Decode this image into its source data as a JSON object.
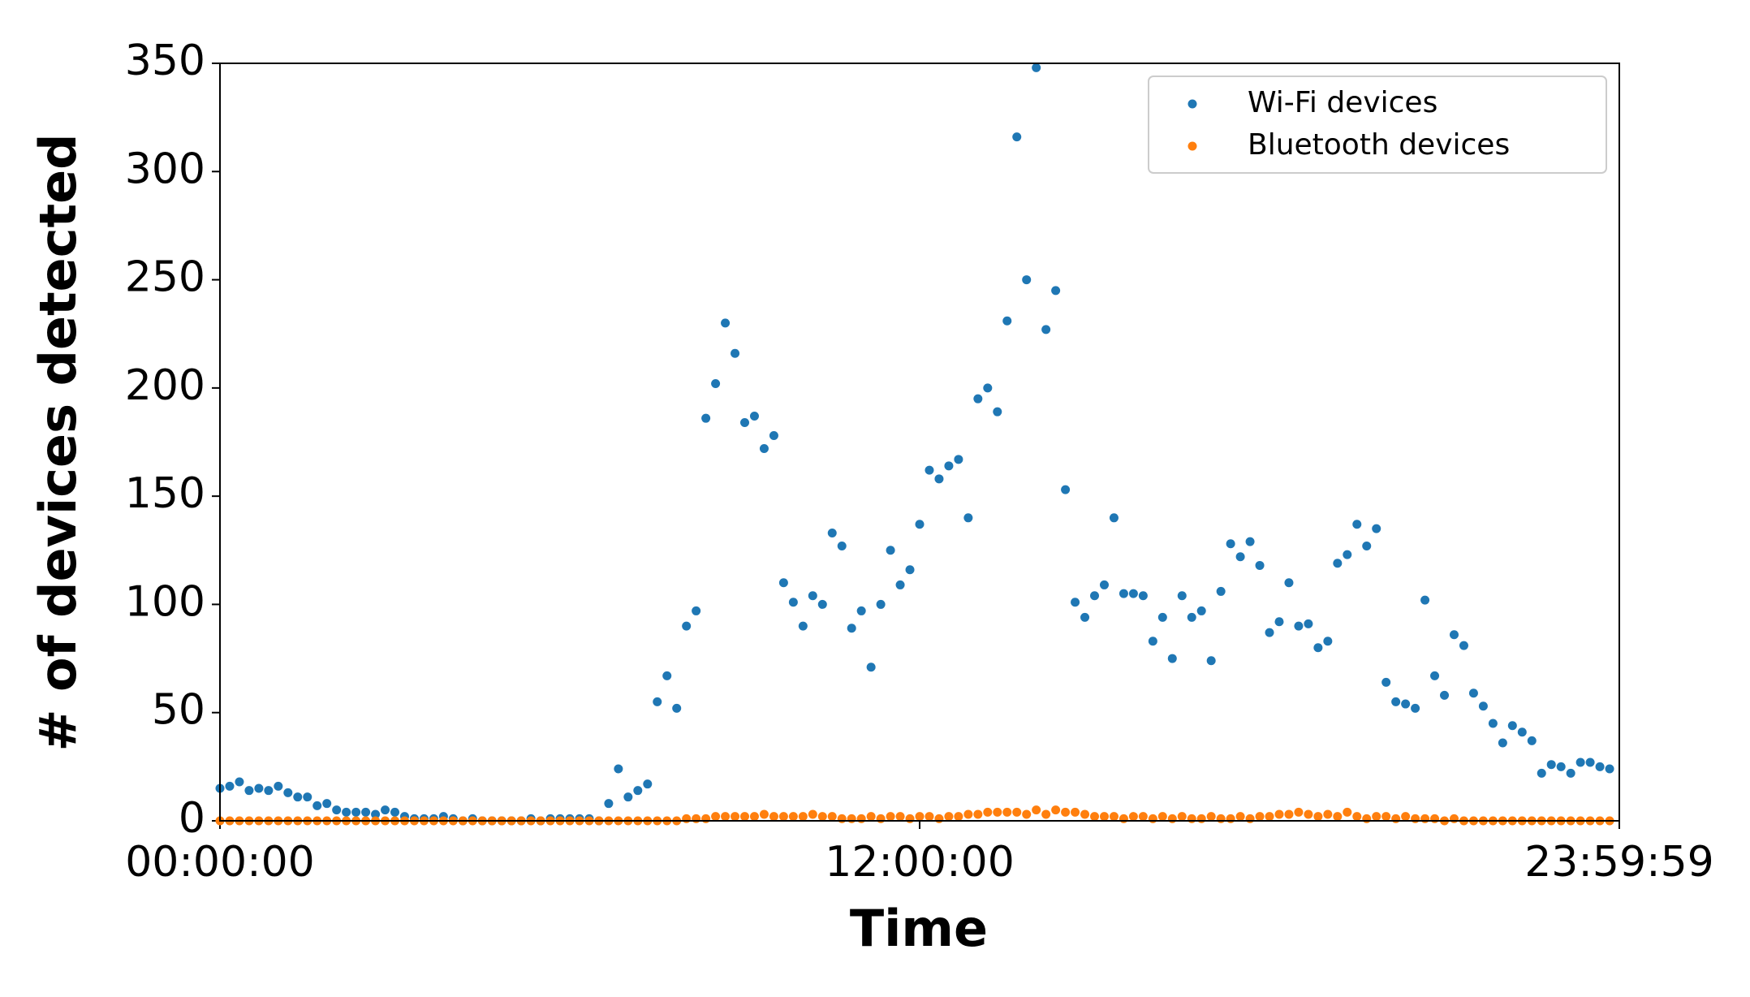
{
  "chart_data": {
    "type": "scatter",
    "x_label": "Time",
    "y_label": "# of devices detected",
    "xlim": [
      0,
      86399
    ],
    "xticks": [
      {
        "value": 0,
        "label": "00:00:00"
      },
      {
        "value": 43200,
        "label": "12:00:00"
      },
      {
        "value": 86399,
        "label": "23:59:59"
      }
    ],
    "ylim": [
      0,
      350
    ],
    "yticks": [
      0,
      50,
      100,
      150,
      200,
      250,
      300,
      350
    ],
    "grid": false,
    "legend": "upper right",
    "x": [
      0,
      600,
      1200,
      1800,
      2400,
      3000,
      3600,
      4200,
      4800,
      5400,
      6000,
      6600,
      7200,
      7800,
      8400,
      9000,
      9600,
      10200,
      10800,
      11400,
      12000,
      12600,
      13200,
      13800,
      14400,
      15000,
      15600,
      16200,
      16800,
      17400,
      18000,
      18600,
      19200,
      19800,
      20400,
      21000,
      21600,
      22200,
      22800,
      23400,
      24000,
      24600,
      25200,
      25800,
      26400,
      27000,
      27600,
      28200,
      28800,
      29400,
      30000,
      30600,
      31200,
      31800,
      32400,
      33000,
      33600,
      34200,
      34800,
      35400,
      36000,
      36600,
      37200,
      37800,
      38400,
      39000,
      39600,
      40200,
      40800,
      41400,
      42000,
      42600,
      43200,
      43800,
      44400,
      45000,
      45600,
      46200,
      46800,
      47400,
      48000,
      48600,
      49200,
      49800,
      50400,
      51000,
      51600,
      52200,
      52800,
      53400,
      54000,
      54600,
      55200,
      55800,
      56400,
      57000,
      57600,
      58200,
      58800,
      59400,
      60000,
      60600,
      61200,
      61800,
      62400,
      63000,
      63600,
      64200,
      64800,
      65400,
      66000,
      66600,
      67200,
      67800,
      68400,
      69000,
      69600,
      70200,
      70800,
      71400,
      72000,
      72600,
      73200,
      73800,
      74400,
      75000,
      75600,
      76200,
      76800,
      77400,
      78000,
      78600,
      79200,
      79800,
      80400,
      81000,
      81600,
      82200,
      82800,
      83400,
      84000,
      84600,
      85200,
      85800
    ],
    "series": [
      {
        "name": "Wi-Fi devices",
        "color": "#1f77b4",
        "values": [
          15,
          16,
          18,
          14,
          15,
          14,
          16,
          13,
          11,
          11,
          7,
          8,
          5,
          4,
          4,
          4,
          3,
          5,
          4,
          2,
          1,
          1,
          1,
          2,
          1,
          0,
          1,
          0,
          0,
          0,
          0,
          0,
          1,
          0,
          1,
          1,
          1,
          1,
          1,
          0,
          8,
          24,
          11,
          14,
          17,
          55,
          67,
          52,
          90,
          97,
          186,
          202,
          230,
          216,
          184,
          187,
          172,
          178,
          110,
          101,
          90,
          104,
          100,
          133,
          127,
          89,
          97,
          71,
          100,
          125,
          109,
          116,
          137,
          162,
          158,
          164,
          167,
          140,
          195,
          200,
          189,
          231,
          316,
          250,
          348,
          227,
          245,
          153,
          101,
          94,
          104,
          109,
          140,
          105,
          105,
          104,
          83,
          94,
          75,
          104,
          94,
          97,
          74,
          106,
          128,
          122,
          129,
          118,
          87,
          92,
          110,
          90,
          91,
          80,
          83,
          119,
          123,
          137,
          127,
          135,
          64,
          55,
          54,
          52,
          102,
          67,
          58,
          86,
          81,
          59,
          53,
          45,
          36,
          44,
          41,
          37,
          22,
          26,
          25,
          22,
          27,
          27,
          25,
          24
        ]
      },
      {
        "name": "Bluetooth devices",
        "color": "#ff7f0e",
        "values": [
          0,
          0,
          0,
          0,
          0,
          0,
          0,
          0,
          0,
          0,
          0,
          0,
          0,
          0,
          0,
          0,
          0,
          0,
          0,
          0,
          0,
          0,
          0,
          0,
          0,
          0,
          0,
          0,
          0,
          0,
          0,
          0,
          0,
          0,
          0,
          0,
          0,
          0,
          0,
          0,
          0,
          0,
          0,
          0,
          0,
          0,
          0,
          0,
          1,
          1,
          1,
          2,
          2,
          2,
          2,
          2,
          3,
          2,
          2,
          2,
          2,
          3,
          2,
          2,
          1,
          1,
          1,
          2,
          1,
          2,
          2,
          1,
          2,
          2,
          1,
          2,
          2,
          3,
          3,
          4,
          4,
          4,
          4,
          3,
          5,
          3,
          5,
          4,
          4,
          3,
          2,
          2,
          2,
          1,
          2,
          2,
          1,
          2,
          1,
          2,
          1,
          1,
          2,
          1,
          1,
          2,
          1,
          2,
          2,
          3,
          3,
          4,
          3,
          2,
          3,
          2,
          4,
          2,
          1,
          2,
          2,
          1,
          2,
          1,
          1,
          1,
          0,
          1,
          0,
          0,
          0,
          0,
          0,
          0,
          0,
          0,
          0,
          0,
          0,
          0,
          0,
          0,
          0,
          0
        ]
      }
    ]
  }
}
